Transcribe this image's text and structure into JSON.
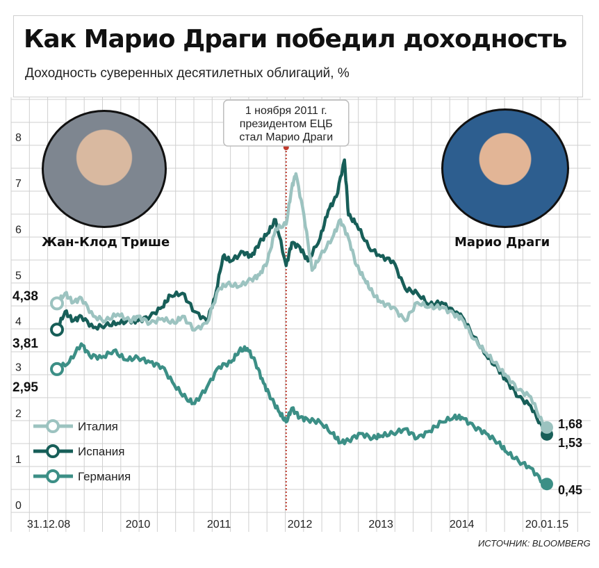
{
  "title": "Как Марио Драги победил доходность",
  "subtitle": "Доходность суверенных десятилетных облигаций, %",
  "source": "ИСТОЧНИК: BLOOMBERG",
  "annotation": {
    "lines": [
      "1 ноября 2011 г.",
      "президентом ЕЦБ",
      "стал Марио Драги"
    ],
    "date": 2011.83
  },
  "portraits": [
    {
      "name": "Жан-Клод Трише",
      "side": "left"
    },
    {
      "name": "Марио Драги",
      "side": "right"
    }
  ],
  "colors": {
    "italy": "#9cc3c0",
    "spain": "#175e58",
    "germany": "#3c8f86",
    "grid": "#cfcfcf",
    "annotation": "#c0392b"
  },
  "chart_data": {
    "type": "line",
    "title": "Как Марио Драги победил доходность",
    "ylabel": "Доходность суверенных десятилетных облигаций, %",
    "ylim": [
      0,
      8
    ],
    "yticks": [
      0,
      1,
      2,
      3,
      4,
      5,
      6,
      7,
      8
    ],
    "xlim": [
      2009.0,
      2015.05
    ],
    "xticks": [
      {
        "pos": 2009.0,
        "label": "31.12.08"
      },
      {
        "pos": 2010.0,
        "label": "2010"
      },
      {
        "pos": 2011.0,
        "label": "2011"
      },
      {
        "pos": 2012.0,
        "label": "2012"
      },
      {
        "pos": 2013.0,
        "label": "2013"
      },
      {
        "pos": 2014.0,
        "label": "2014"
      },
      {
        "pos": 2015.05,
        "label": "20.01.15"
      }
    ],
    "grid": true,
    "legend": "bottom-left",
    "series": [
      {
        "name": "Италия",
        "key": "italy",
        "start_label": "4,38",
        "end_label": "1,68",
        "x": [
          2009.0,
          2009.1,
          2009.2,
          2009.3,
          2009.45,
          2009.6,
          2009.75,
          2009.9,
          2010.0,
          2010.15,
          2010.3,
          2010.45,
          2010.55,
          2010.7,
          2010.85,
          2011.0,
          2011.1,
          2011.25,
          2011.4,
          2011.5,
          2011.6,
          2011.7,
          2011.83,
          2011.9,
          2011.95,
          2012.05,
          2012.15,
          2012.25,
          2012.4,
          2012.5,
          2012.6,
          2012.7,
          2012.8,
          2012.9,
          2013.0,
          2013.15,
          2013.3,
          2013.45,
          2013.6,
          2013.75,
          2013.9,
          2014.0,
          2014.15,
          2014.3,
          2014.45,
          2014.55,
          2014.7,
          2014.85,
          2015.0,
          2015.05
        ],
        "y": [
          4.38,
          4.6,
          4.4,
          4.5,
          4.1,
          4.0,
          4.15,
          4.0,
          4.1,
          3.95,
          4.05,
          3.95,
          4.1,
          3.8,
          3.95,
          4.7,
          4.8,
          4.75,
          4.9,
          5.0,
          5.3,
          6.0,
          6.1,
          6.9,
          7.2,
          6.3,
          5.1,
          5.4,
          5.8,
          6.2,
          5.8,
          5.2,
          4.9,
          4.6,
          4.4,
          4.3,
          4.0,
          4.4,
          4.3,
          4.3,
          4.15,
          4.05,
          3.6,
          3.3,
          3.0,
          2.8,
          2.5,
          2.35,
          1.75,
          1.68
        ]
      },
      {
        "name": "Испания",
        "key": "spain",
        "start_label": "3,81",
        "end_label": "1,53",
        "x": [
          2009.0,
          2009.1,
          2009.2,
          2009.3,
          2009.45,
          2009.6,
          2009.75,
          2009.9,
          2010.0,
          2010.15,
          2010.3,
          2010.4,
          2010.55,
          2010.7,
          2010.85,
          2010.95,
          2011.05,
          2011.15,
          2011.3,
          2011.4,
          2011.5,
          2011.6,
          2011.7,
          2011.83,
          2011.9,
          2012.0,
          2012.1,
          2012.25,
          2012.35,
          2012.45,
          2012.55,
          2012.6,
          2012.7,
          2012.85,
          2013.0,
          2013.15,
          2013.3,
          2013.45,
          2013.6,
          2013.75,
          2013.9,
          2014.0,
          2014.15,
          2014.3,
          2014.45,
          2014.55,
          2014.7,
          2014.85,
          2015.0,
          2015.05
        ],
        "y": [
          3.81,
          4.2,
          4.0,
          4.1,
          3.85,
          3.9,
          3.95,
          4.0,
          4.0,
          4.1,
          4.3,
          4.55,
          4.6,
          4.2,
          4.0,
          4.5,
          5.4,
          5.3,
          5.5,
          5.4,
          5.7,
          5.9,
          6.2,
          5.2,
          5.7,
          5.6,
          5.3,
          5.8,
          6.4,
          6.7,
          7.5,
          6.3,
          6.1,
          5.6,
          5.4,
          5.3,
          4.7,
          4.6,
          4.35,
          4.4,
          4.2,
          4.1,
          3.65,
          3.25,
          2.95,
          2.7,
          2.35,
          2.15,
          1.65,
          1.53
        ]
      },
      {
        "name": "Германия",
        "key": "germany",
        "start_label": "2,95",
        "end_label": "0,45",
        "x": [
          2009.0,
          2009.15,
          2009.3,
          2009.4,
          2009.55,
          2009.7,
          2009.85,
          2010.0,
          2010.15,
          2010.3,
          2010.45,
          2010.6,
          2010.7,
          2010.85,
          2011.0,
          2011.15,
          2011.25,
          2011.35,
          2011.45,
          2011.55,
          2011.65,
          2011.75,
          2011.83,
          2011.9,
          2012.0,
          2012.1,
          2012.25,
          2012.4,
          2012.5,
          2012.6,
          2012.75,
          2012.9,
          2013.0,
          2013.15,
          2013.3,
          2013.45,
          2013.6,
          2013.75,
          2013.9,
          2014.0,
          2014.15,
          2014.3,
          2014.45,
          2014.55,
          2014.7,
          2014.85,
          2015.0,
          2015.05
        ],
        "y": [
          2.95,
          3.1,
          3.5,
          3.25,
          3.2,
          3.35,
          3.15,
          3.2,
          3.1,
          3.0,
          2.6,
          2.3,
          2.2,
          2.55,
          3.0,
          3.1,
          3.35,
          3.4,
          3.1,
          2.65,
          2.3,
          2.0,
          1.8,
          2.1,
          1.9,
          1.85,
          1.8,
          1.55,
          1.35,
          1.4,
          1.55,
          1.45,
          1.5,
          1.55,
          1.65,
          1.45,
          1.6,
          1.8,
          1.9,
          1.9,
          1.7,
          1.55,
          1.35,
          1.15,
          0.95,
          0.8,
          0.5,
          0.45
        ]
      }
    ]
  }
}
